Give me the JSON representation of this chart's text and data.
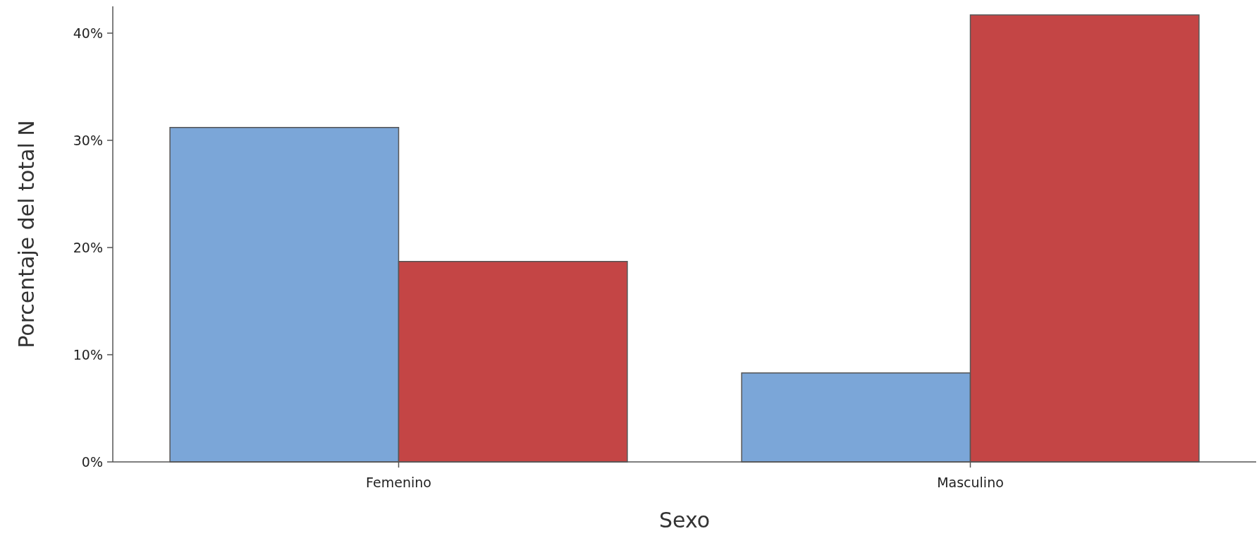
{
  "chart_data": {
    "type": "bar",
    "xlabel": "Sexo",
    "ylabel": "Porcentaje del total N",
    "categories": [
      "Femenino",
      "Masculino"
    ],
    "series": [
      {
        "color": "#7ba6d8",
        "values": [
          31.2,
          8.3
        ]
      },
      {
        "color": "#c44545",
        "values": [
          18.7,
          41.7
        ]
      }
    ],
    "ylim": [
      0,
      42.5
    ],
    "yticks": [
      {
        "value": 0,
        "label": "0%"
      },
      {
        "value": 10,
        "label": "10%"
      },
      {
        "value": 20,
        "label": "20%"
      },
      {
        "value": 30,
        "label": "30%"
      },
      {
        "value": 40,
        "label": "40%"
      }
    ]
  }
}
